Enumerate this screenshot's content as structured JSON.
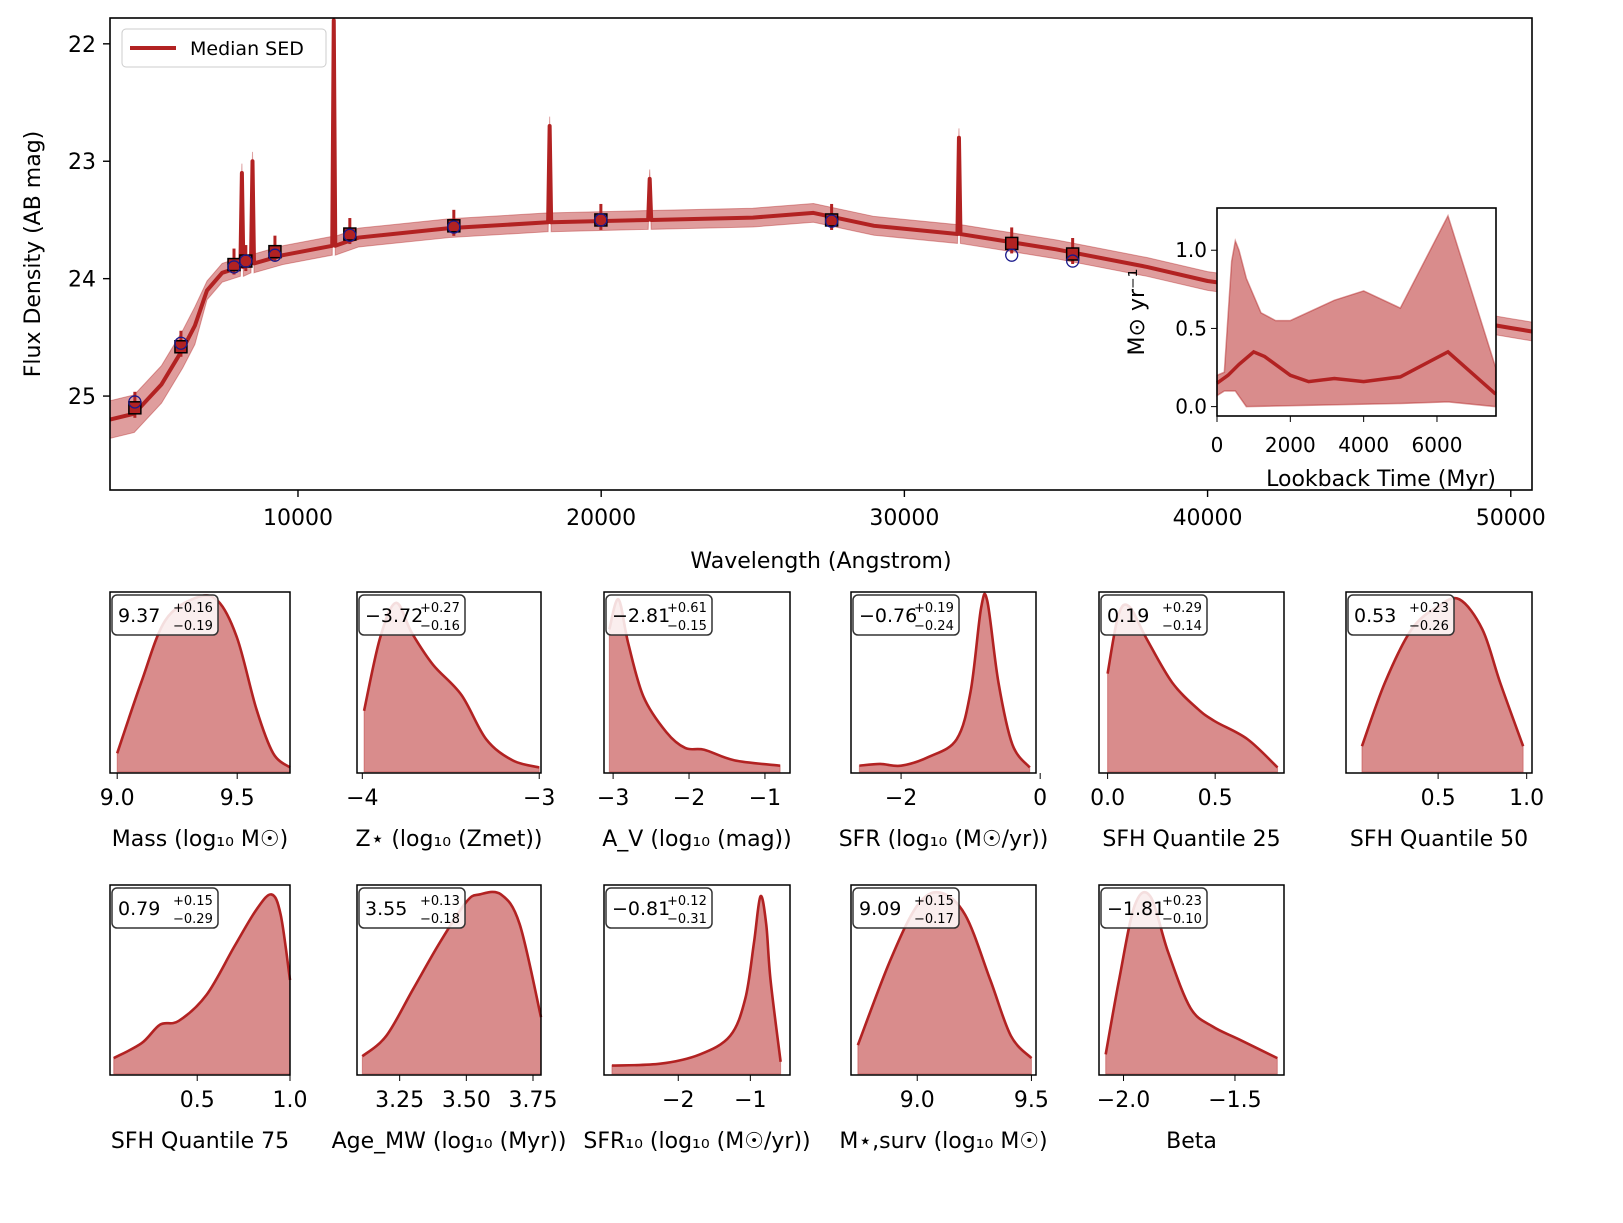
{
  "colors": {
    "median": "#b22222",
    "band": "#d98c8c",
    "observed": "#1a1a8c",
    "model_marker": "#000000"
  },
  "chart_data": [
    {
      "type": "line",
      "xlabel": "Wavelength (Angstrom)",
      "ylabel": "Flux Density (AB mag)",
      "xlim": [
        3800,
        50700
      ],
      "ylim": [
        25.8,
        21.78
      ],
      "y_inverted": true,
      "xticks": [
        10000,
        20000,
        30000,
        40000,
        50000
      ],
      "yticks": [
        22,
        23,
        24,
        25
      ],
      "legend": {
        "placement": "top-left",
        "entries": [
          "Median SED"
        ]
      },
      "median_sed": [
        [
          3800,
          25.2
        ],
        [
          4600,
          25.15
        ],
        [
          5500,
          24.9
        ],
        [
          6200,
          24.6
        ],
        [
          6600,
          24.4
        ],
        [
          7000,
          24.1
        ],
        [
          7500,
          23.95
        ],
        [
          8100,
          23.9
        ],
        [
          8150,
          23.1
        ],
        [
          8200,
          23.9
        ],
        [
          8450,
          23.87
        ],
        [
          8500,
          23.0
        ],
        [
          8550,
          23.87
        ],
        [
          9500,
          23.8
        ],
        [
          11130,
          23.72
        ],
        [
          11180,
          21.8
        ],
        [
          11230,
          23.72
        ],
        [
          12000,
          23.65
        ],
        [
          15000,
          23.57
        ],
        [
          18250,
          23.52
        ],
        [
          18300,
          22.7
        ],
        [
          18350,
          23.52
        ],
        [
          21550,
          23.5
        ],
        [
          21600,
          23.15
        ],
        [
          21650,
          23.5
        ],
        [
          25000,
          23.48
        ],
        [
          27000,
          23.44
        ],
        [
          29000,
          23.55
        ],
        [
          31750,
          23.62
        ],
        [
          31800,
          22.8
        ],
        [
          31850,
          23.62
        ],
        [
          35000,
          23.75
        ],
        [
          38000,
          23.9
        ],
        [
          40000,
          24.02
        ],
        [
          45000,
          24.2
        ],
        [
          50000,
          24.42
        ],
        [
          50700,
          24.45
        ]
      ],
      "band_halfwidth_mag": 0.08,
      "model_photometry": [
        [
          4620,
          25.1
        ],
        [
          6140,
          24.58
        ],
        [
          7890,
          23.88
        ],
        [
          8280,
          23.85
        ],
        [
          9240,
          23.77
        ],
        [
          11710,
          23.62
        ],
        [
          15140,
          23.55
        ],
        [
          19990,
          23.5
        ],
        [
          27600,
          23.5
        ],
        [
          33540,
          23.7
        ],
        [
          35550,
          23.79
        ]
      ],
      "observed_photometry": [
        [
          4620,
          25.05
        ],
        [
          6140,
          24.55
        ],
        [
          7890,
          23.9
        ],
        [
          8280,
          23.85
        ],
        [
          9240,
          23.8
        ],
        [
          11710,
          23.63
        ],
        [
          15140,
          23.56
        ],
        [
          19990,
          23.5
        ],
        [
          27600,
          23.51
        ],
        [
          33540,
          23.8
        ],
        [
          35550,
          23.85
        ]
      ]
    },
    {
      "type": "area",
      "xlabel": "Lookback Time (Myr)",
      "ylabel": "M⊙ yr⁻¹",
      "xlim": [
        0,
        7610
      ],
      "ylim": [
        -0.06,
        1.27
      ],
      "xticks": [
        0,
        2000,
        4000,
        6000
      ],
      "yticks": [
        0.0,
        0.5,
        1.0
      ],
      "ytick_labels": [
        "0.0",
        "0.5",
        "1.0"
      ],
      "median": [
        [
          0,
          0.15
        ],
        [
          300,
          0.2
        ],
        [
          600,
          0.27
        ],
        [
          1000,
          0.35
        ],
        [
          1300,
          0.32
        ],
        [
          2000,
          0.2
        ],
        [
          2500,
          0.16
        ],
        [
          3200,
          0.18
        ],
        [
          4000,
          0.16
        ],
        [
          5000,
          0.19
        ],
        [
          6300,
          0.35
        ],
        [
          7600,
          0.08
        ]
      ],
      "upper": [
        [
          0,
          0.2
        ],
        [
          200,
          0.22
        ],
        [
          400,
          0.93
        ],
        [
          500,
          1.06
        ],
        [
          600,
          1.0
        ],
        [
          800,
          0.82
        ],
        [
          1200,
          0.6
        ],
        [
          1600,
          0.55
        ],
        [
          2000,
          0.55
        ],
        [
          3200,
          0.68
        ],
        [
          4000,
          0.74
        ],
        [
          5000,
          0.63
        ],
        [
          6300,
          1.22
        ],
        [
          7600,
          0.25
        ]
      ],
      "lower": [
        [
          0,
          0.07
        ],
        [
          200,
          0.1
        ],
        [
          500,
          0.1
        ],
        [
          800,
          0.0
        ],
        [
          5000,
          0.02
        ],
        [
          6300,
          0.03
        ],
        [
          7600,
          0.0
        ]
      ]
    },
    {
      "type": "area",
      "xlabel": "Mass (log₁₀ M☉)",
      "xlim": [
        8.97,
        9.72
      ],
      "xticks": [
        9.0,
        9.5
      ],
      "xtick_labels": [
        "9.0",
        "9.5"
      ],
      "annot": {
        "value": "9.37",
        "plus": "+0.16",
        "minus": "−0.19"
      },
      "kde": [
        [
          9.0,
          0.1
        ],
        [
          9.1,
          0.5
        ],
        [
          9.2,
          0.85
        ],
        [
          9.33,
          0.98
        ],
        [
          9.42,
          0.96
        ],
        [
          9.5,
          0.75
        ],
        [
          9.58,
          0.35
        ],
        [
          9.65,
          0.1
        ],
        [
          9.72,
          0.02
        ]
      ]
    },
    {
      "type": "area",
      "xlabel": "Z⋆ (log₁₀ (Zmet))",
      "xlim": [
        -4.03,
        -2.99
      ],
      "xticks": [
        -4,
        -3
      ],
      "xtick_labels": [
        "−4",
        "−3"
      ],
      "annot": {
        "value": "−3.72",
        "plus": "+0.27",
        "minus": "−0.16"
      },
      "kde": [
        [
          -3.99,
          0.34
        ],
        [
          -3.9,
          0.75
        ],
        [
          -3.81,
          0.95
        ],
        [
          -3.72,
          0.78
        ],
        [
          -3.6,
          0.6
        ],
        [
          -3.44,
          0.43
        ],
        [
          -3.3,
          0.18
        ],
        [
          -3.15,
          0.06
        ],
        [
          -3.0,
          0.02
        ]
      ]
    },
    {
      "type": "area",
      "xlabel": "A_V (log₁₀ (mag))",
      "xlim": [
        -3.12,
        -0.67
      ],
      "xticks": [
        -3,
        -2,
        -1
      ],
      "xtick_labels": [
        "−3",
        "−2",
        "−1"
      ],
      "annot": {
        "value": "−2.81",
        "plus": "+0.61",
        "minus": "−0.15"
      },
      "kde": [
        [
          -3.05,
          0.8
        ],
        [
          -2.93,
          0.97
        ],
        [
          -2.8,
          0.72
        ],
        [
          -2.6,
          0.42
        ],
        [
          -2.3,
          0.22
        ],
        [
          -2.05,
          0.13
        ],
        [
          -1.8,
          0.12
        ],
        [
          -1.4,
          0.06
        ],
        [
          -0.8,
          0.03
        ]
      ]
    },
    {
      "type": "area",
      "xlabel": "SFR (log₁₀ (M☉/yr))",
      "xlim": [
        -2.72,
        -0.06
      ],
      "xticks": [
        -2,
        0
      ],
      "xtick_labels": [
        "−2",
        "0"
      ],
      "annot": {
        "value": "−0.76",
        "plus": "+0.19",
        "minus": "−0.24"
      },
      "kde": [
        [
          -2.6,
          0.03
        ],
        [
          -2.3,
          0.04
        ],
        [
          -2.0,
          0.03
        ],
        [
          -1.6,
          0.08
        ],
        [
          -1.2,
          0.18
        ],
        [
          -1.0,
          0.45
        ],
        [
          -0.85,
          0.92
        ],
        [
          -0.76,
          0.96
        ],
        [
          -0.6,
          0.5
        ],
        [
          -0.4,
          0.15
        ],
        [
          -0.15,
          0.02
        ]
      ]
    },
    {
      "type": "area",
      "xlabel": "SFH Quantile 25",
      "xlim": [
        -0.04,
        0.82
      ],
      "xticks": [
        0.0,
        0.5
      ],
      "xtick_labels": [
        "0.0",
        "0.5"
      ],
      "annot": {
        "value": "0.19",
        "plus": "+0.29",
        "minus": "−0.14"
      },
      "kde": [
        [
          0.0,
          0.55
        ],
        [
          0.05,
          0.88
        ],
        [
          0.1,
          0.93
        ],
        [
          0.18,
          0.75
        ],
        [
          0.3,
          0.5
        ],
        [
          0.42,
          0.35
        ],
        [
          0.5,
          0.28
        ],
        [
          0.65,
          0.18
        ],
        [
          0.79,
          0.02
        ]
      ]
    },
    {
      "type": "area",
      "xlabel": "SFH Quantile 50",
      "xlim": [
        -0.02,
        1.03
      ],
      "xticks": [
        0.5,
        1.0
      ],
      "xtick_labels": [
        "0.5",
        "1.0"
      ],
      "annot": {
        "value": "0.53",
        "plus": "+0.23",
        "minus": "−0.26"
      },
      "kde": [
        [
          0.07,
          0.14
        ],
        [
          0.2,
          0.5
        ],
        [
          0.35,
          0.8
        ],
        [
          0.5,
          0.93
        ],
        [
          0.62,
          0.97
        ],
        [
          0.75,
          0.8
        ],
        [
          0.85,
          0.5
        ],
        [
          0.98,
          0.14
        ]
      ]
    },
    {
      "type": "area",
      "xlabel": "SFH Quantile 75",
      "xlim": [
        0.03,
        1.0
      ],
      "xticks": [
        0.5,
        1.0
      ],
      "xtick_labels": [
        "0.5",
        "1.0"
      ],
      "annot": {
        "value": "0.79",
        "plus": "+0.15",
        "minus": "−0.29"
      },
      "kde": [
        [
          0.05,
          0.08
        ],
        [
          0.2,
          0.16
        ],
        [
          0.3,
          0.26
        ],
        [
          0.4,
          0.28
        ],
        [
          0.55,
          0.42
        ],
        [
          0.7,
          0.68
        ],
        [
          0.82,
          0.88
        ],
        [
          0.9,
          0.96
        ],
        [
          0.95,
          0.85
        ],
        [
          1.0,
          0.5
        ]
      ]
    },
    {
      "type": "area",
      "xlabel": "Age_MW (log₁₀ (Myr))",
      "xlim": [
        3.09,
        3.78
      ],
      "xticks": [
        3.25,
        3.5,
        3.75
      ],
      "xtick_labels": [
        "3.25",
        "3.50",
        "3.75"
      ],
      "annot": {
        "value": "3.55",
        "plus": "+0.13",
        "minus": "−0.18"
      },
      "kde": [
        [
          3.11,
          0.09
        ],
        [
          3.2,
          0.2
        ],
        [
          3.3,
          0.45
        ],
        [
          3.4,
          0.7
        ],
        [
          3.5,
          0.92
        ],
        [
          3.55,
          0.96
        ],
        [
          3.63,
          0.96
        ],
        [
          3.7,
          0.8
        ],
        [
          3.78,
          0.3
        ]
      ]
    },
    {
      "type": "area",
      "xlabel": "SFR₁₀ (log₁₀ (M☉/yr))",
      "xlim": [
        -3.03,
        -0.45
      ],
      "xticks": [
        -2,
        -1
      ],
      "xtick_labels": [
        "−2",
        "−1"
      ],
      "annot": {
        "value": "−0.81",
        "plus": "+0.12",
        "minus": "−0.31"
      },
      "kde": [
        [
          -2.92,
          0.04
        ],
        [
          -2.25,
          0.05
        ],
        [
          -1.7,
          0.1
        ],
        [
          -1.28,
          0.2
        ],
        [
          -1.07,
          0.4
        ],
        [
          -0.95,
          0.7
        ],
        [
          -0.86,
          0.95
        ],
        [
          -0.78,
          0.8
        ],
        [
          -0.72,
          0.5
        ],
        [
          -0.58,
          0.06
        ]
      ]
    },
    {
      "type": "area",
      "xlabel": "M⋆,surv (log₁₀ M☉)",
      "xlim": [
        8.71,
        9.52
      ],
      "xticks": [
        9.0,
        9.5
      ],
      "xtick_labels": [
        "9.0",
        "9.5"
      ],
      "annot": {
        "value": "9.09",
        "plus": "+0.15",
        "minus": "−0.17"
      },
      "kde": [
        [
          8.74,
          0.15
        ],
        [
          8.88,
          0.6
        ],
        [
          9.0,
          0.9
        ],
        [
          9.1,
          0.97
        ],
        [
          9.21,
          0.85
        ],
        [
          9.32,
          0.5
        ],
        [
          9.41,
          0.2
        ],
        [
          9.5,
          0.08
        ]
      ]
    },
    {
      "type": "area",
      "xlabel": "Beta",
      "xlim": [
        -2.11,
        -1.28
      ],
      "xticks": [
        -2.0,
        -1.5
      ],
      "xtick_labels": [
        "−2.0",
        "−1.5"
      ],
      "annot": {
        "value": "−1.81",
        "plus": "+0.23",
        "minus": "−0.10"
      },
      "kde": [
        [
          -2.08,
          0.1
        ],
        [
          -2.02,
          0.5
        ],
        [
          -1.95,
          0.9
        ],
        [
          -1.88,
          0.95
        ],
        [
          -1.8,
          0.65
        ],
        [
          -1.7,
          0.35
        ],
        [
          -1.6,
          0.25
        ],
        [
          -1.48,
          0.18
        ],
        [
          -1.31,
          0.08
        ]
      ]
    }
  ]
}
